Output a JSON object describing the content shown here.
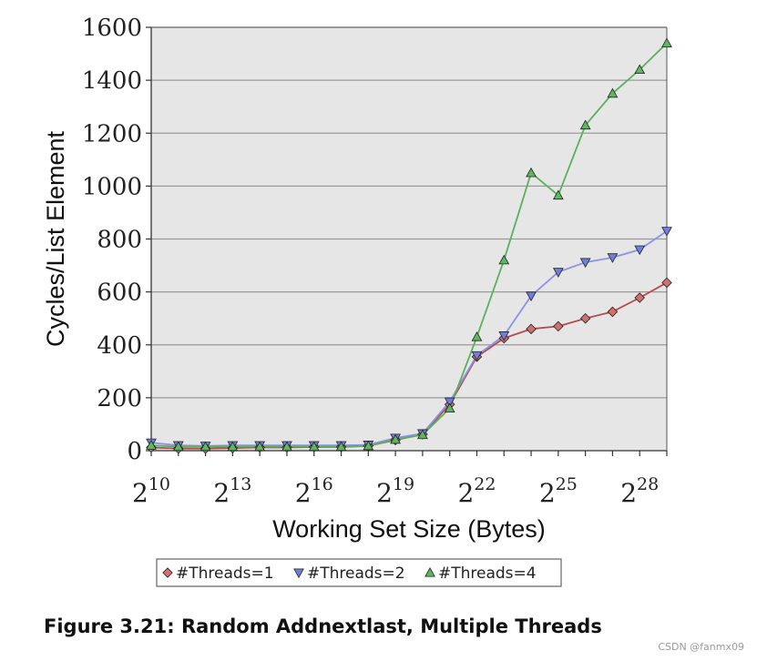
{
  "chart_data": {
    "type": "line",
    "xlabel": "Working Set Size (Bytes)",
    "ylabel": "Cycles/List Element",
    "x_exponents": [
      10,
      11,
      12,
      13,
      14,
      15,
      16,
      17,
      18,
      19,
      20,
      21,
      22,
      23,
      24,
      25,
      26,
      27,
      28,
      29
    ],
    "x_tick_exponents": [
      10,
      13,
      16,
      19,
      22,
      25,
      28
    ],
    "x_tick_base": "2",
    "xlim_exponent": [
      10,
      29
    ],
    "ylim": [
      0,
      1600
    ],
    "y_ticks": [
      0,
      200,
      400,
      600,
      800,
      1000,
      1200,
      1400,
      1600
    ],
    "grid": "horizontal",
    "legend_position": "bottom",
    "series": [
      {
        "name": "#Threads=1",
        "color": "#b84a4a",
        "fill": "#d07070",
        "marker": "diamond",
        "values": [
          12,
          8,
          8,
          10,
          12,
          12,
          14,
          14,
          18,
          40,
          62,
          175,
          355,
          425,
          460,
          470,
          500,
          525,
          578,
          635
        ]
      },
      {
        "name": "#Threads=2",
        "color": "#8a93e6",
        "fill": "#6f7fe0",
        "marker": "triangle-down",
        "values": [
          30,
          20,
          18,
          20,
          20,
          20,
          20,
          20,
          22,
          48,
          65,
          185,
          360,
          435,
          585,
          675,
          712,
          730,
          760,
          830
        ]
      },
      {
        "name": "#Threads=4",
        "color": "#5bb05b",
        "fill": "#5cb85c",
        "marker": "triangle-up",
        "values": [
          20,
          15,
          15,
          15,
          15,
          15,
          15,
          15,
          18,
          42,
          60,
          160,
          430,
          720,
          1050,
          965,
          1230,
          1350,
          1440,
          1540
        ]
      }
    ]
  },
  "caption": "Figure 3.21: Random Addnextlast, Multiple Threads",
  "watermark": "CSDN @fanmx09"
}
